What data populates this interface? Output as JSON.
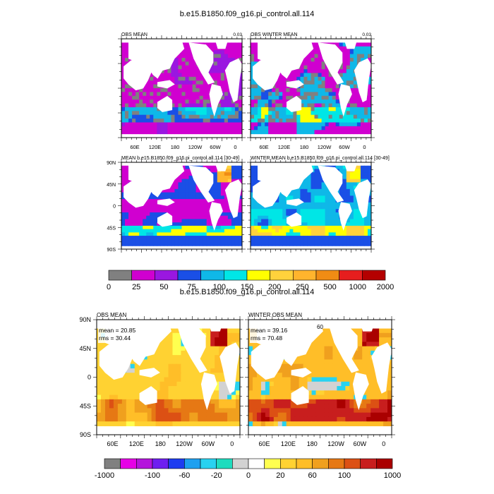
{
  "figure": {
    "title_top": "b.e15.B1850.f09_g16.pi_control.all.114",
    "title_bottom": "b.e15.B1850.f09_g16.pi_control.all.114"
  },
  "palette": {
    "land": "#ffffff",
    "background": "#ffffff"
  },
  "chart_data": [
    {
      "type": "heatmap",
      "panel": "obs-mean",
      "title": "OBS MEAN",
      "right_label": "0.03",
      "xticks": [
        "60E",
        "120E",
        "180",
        "120W",
        "60W",
        "0"
      ],
      "yticks": []
    },
    {
      "type": "heatmap",
      "panel": "obs-winter-mean",
      "title": "OBS WINTER MEAN",
      "right_label": "0.03",
      "xticks": [
        "60E",
        "120E",
        "180",
        "120W",
        "60W",
        "0"
      ],
      "yticks": []
    },
    {
      "type": "heatmap",
      "panel": "model-mean",
      "title": "MEAN b.e15.B1850.f09_g16.pi_control.all.114 [30-49]",
      "xticks": [],
      "yticks": [
        "90N",
        "45N",
        "0",
        "45S",
        "90S"
      ]
    },
    {
      "type": "heatmap",
      "panel": "model-winter-mean",
      "title": "WINTER MEAN b.e15.B1850.f09_g16.pi_control.all.114 [30-49]",
      "xticks": [],
      "yticks": []
    },
    {
      "type": "colorbar",
      "name": "levels-top",
      "labels": [
        "0",
        "25",
        "50",
        "75",
        "100",
        "150",
        "200",
        "250",
        "500",
        "1000",
        "2000"
      ],
      "colors": [
        "#808080",
        "#d000d0",
        "#9a17e0",
        "#1a4fe6",
        "#0fb8e8",
        "#00e6e6",
        "#ffff00",
        "#ffd23c",
        "#ffb42d",
        "#f08c14",
        "#e61e1e",
        "#b40000"
      ]
    },
    {
      "type": "heatmap",
      "panel": "diff-obs-mean",
      "title": "OBS MEAN",
      "stats": [
        "mean = 20.85",
        "rms = 30.44"
      ],
      "xticks": [
        "60E",
        "120E",
        "180",
        "120W",
        "60W",
        "0"
      ],
      "yticks": [
        "90N",
        "45N",
        "0",
        "45S",
        "90S"
      ]
    },
    {
      "type": "heatmap",
      "panel": "diff-winter-obs-mean",
      "title": "WINTER OBS MEAN",
      "stats": [
        "mean = 39.16",
        "rms = 70.48"
      ],
      "annotation": "60",
      "xticks": [
        "60E",
        "120E",
        "180",
        "120W",
        "60W",
        "0"
      ],
      "yticks": []
    },
    {
      "type": "colorbar",
      "name": "levels-bottom",
      "labels": [
        "-1000",
        "-100",
        "-60",
        "-20",
        "0",
        "20",
        "60",
        "100",
        "1000"
      ],
      "colors": [
        "#808080",
        "#e600e6",
        "#b414dc",
        "#6e1ef0",
        "#1e3cf0",
        "#1ea0f0",
        "#28d2f0",
        "#1edcbe",
        "#d2d2d2",
        "#ffffff",
        "#ffff50",
        "#ffd232",
        "#ffbe28",
        "#f0a01e",
        "#e67814",
        "#dc5014",
        "#c81e1e",
        "#aa0000"
      ]
    }
  ]
}
